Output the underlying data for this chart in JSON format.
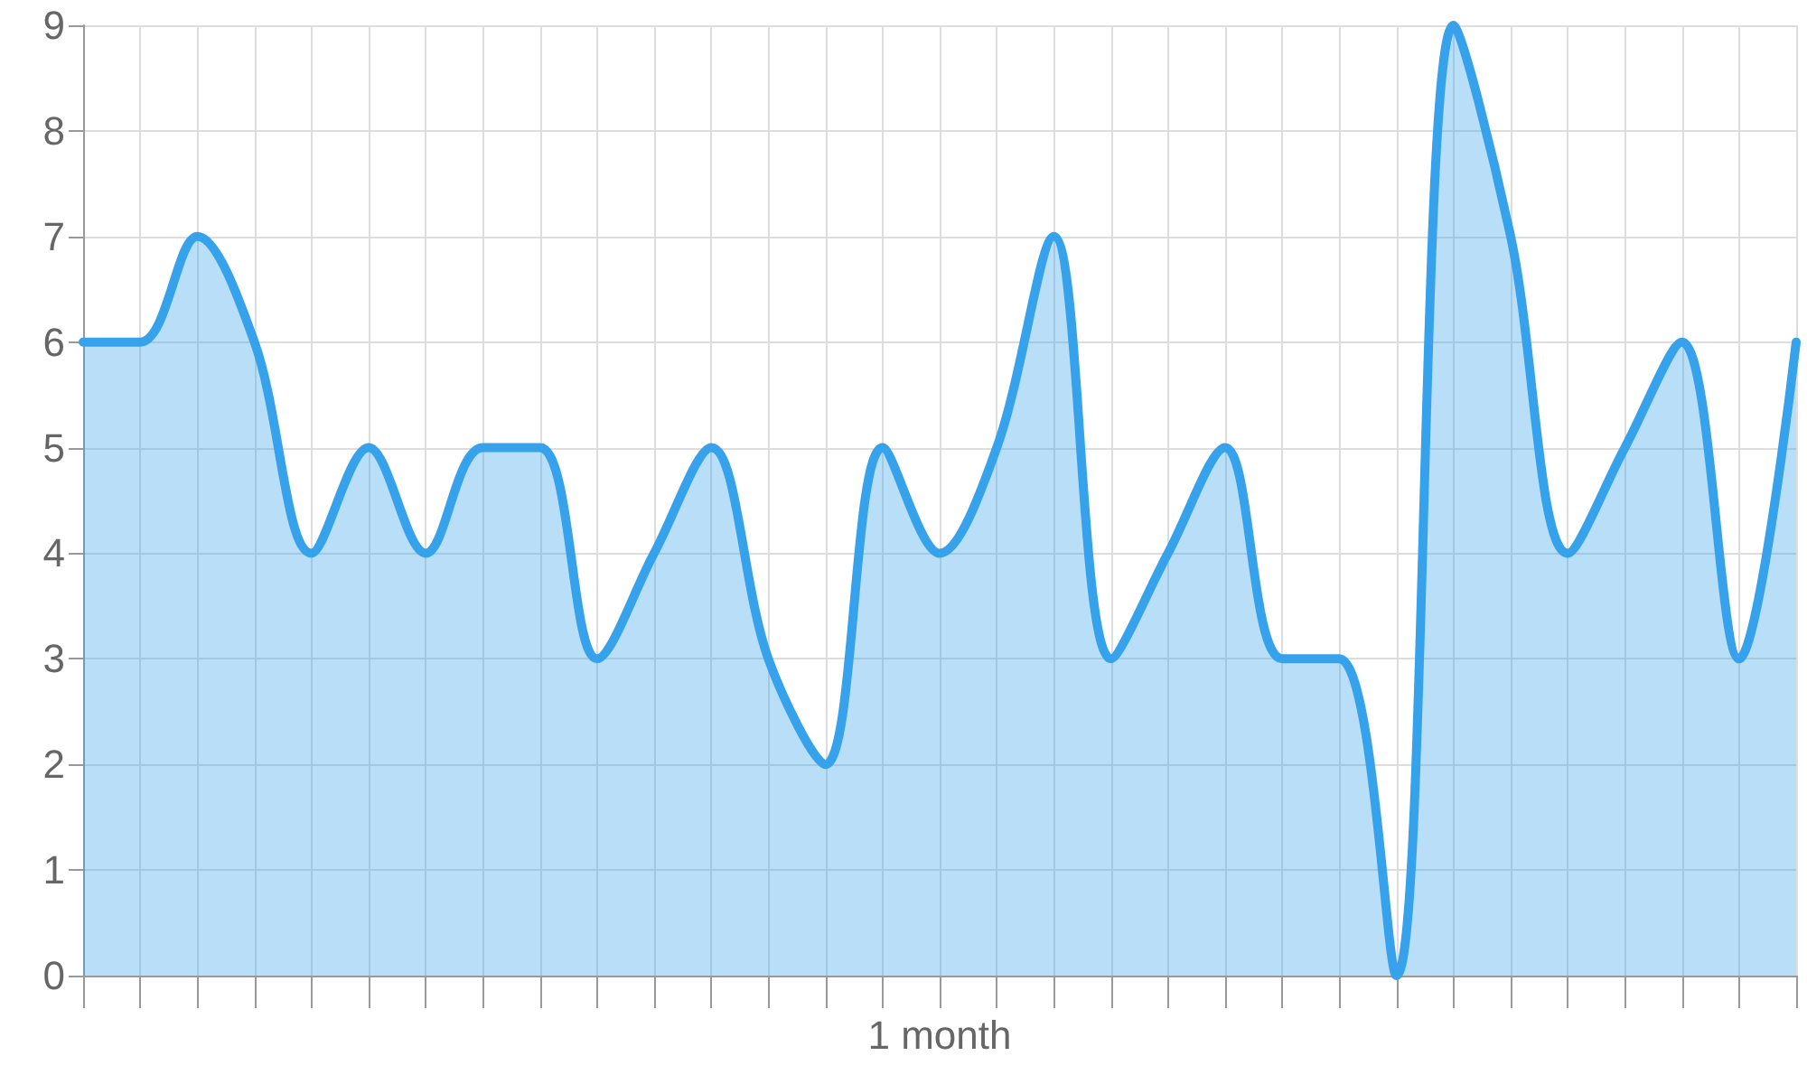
{
  "chart_data": {
    "type": "area",
    "categories": [
      null,
      null,
      null,
      null,
      null,
      null,
      null,
      null,
      null,
      null,
      null,
      null,
      null,
      null,
      null,
      "1 month",
      null,
      null,
      null,
      null,
      null,
      null,
      null,
      null,
      null,
      null,
      null,
      null,
      null,
      null,
      null
    ],
    "values": [
      6,
      6,
      7,
      6,
      4,
      5,
      4,
      5,
      5,
      3,
      4,
      5,
      3,
      2,
      5,
      4,
      5,
      7,
      3,
      4,
      5,
      3,
      3,
      0,
      9,
      7,
      4,
      5,
      6,
      3,
      6
    ],
    "color": "#36a2eb",
    "ylim": [
      0,
      9
    ],
    "yticks": [
      0,
      1,
      2,
      3,
      4,
      5,
      6,
      7,
      8,
      9
    ],
    "grid": true,
    "marker": "none"
  }
}
